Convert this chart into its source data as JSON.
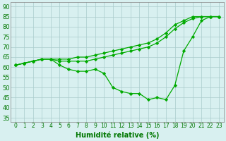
{
  "line1_y": [
    61,
    62,
    63,
    64,
    64,
    64,
    64,
    65,
    65,
    66,
    67,
    68,
    69,
    70,
    71,
    72,
    74,
    77,
    81,
    83,
    85,
    85,
    85,
    85
  ],
  "line2_y": [
    61,
    62,
    63,
    64,
    64,
    63,
    63,
    63,
    63,
    64,
    65,
    66,
    67,
    68,
    69,
    70,
    72,
    75,
    79,
    82,
    84,
    85,
    85,
    85
  ],
  "line3_y": [
    61,
    62,
    63,
    64,
    64,
    61,
    59,
    58,
    58,
    59,
    57,
    50,
    48,
    47,
    47,
    44,
    45,
    44,
    51,
    68,
    75,
    83,
    85,
    85
  ],
  "x": [
    0,
    1,
    2,
    3,
    4,
    5,
    6,
    7,
    8,
    9,
    10,
    11,
    12,
    13,
    14,
    15,
    16,
    17,
    18,
    19,
    20,
    21,
    22,
    23
  ],
  "line_color": "#00aa00",
  "marker": "D",
  "marker_size": 2.2,
  "bg_color": "#d8f0f0",
  "grid_color": "#aacccc",
  "xlabel": "Humidité relative (%)",
  "xlabel_color": "#007700",
  "xlabel_fontsize": 7,
  "tick_color": "#007700",
  "ytick_fontsize": 6,
  "xtick_fontsize": 5.5,
  "ylim": [
    33,
    92
  ],
  "xlim": [
    -0.5,
    23.5
  ],
  "yticks": [
    35,
    40,
    45,
    50,
    55,
    60,
    65,
    70,
    75,
    80,
    85,
    90
  ],
  "xticks": [
    0,
    1,
    2,
    3,
    4,
    5,
    6,
    7,
    8,
    9,
    10,
    11,
    12,
    13,
    14,
    15,
    16,
    17,
    18,
    19,
    20,
    21,
    22,
    23
  ]
}
